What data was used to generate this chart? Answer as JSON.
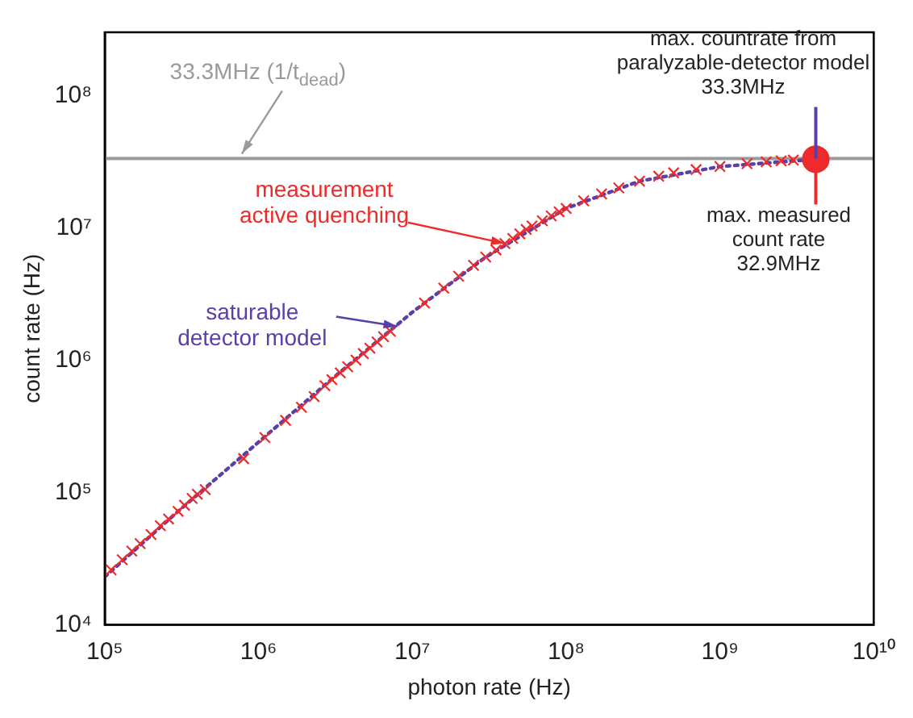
{
  "chart_data": {
    "type": "scatter",
    "xlabel": "photon rate (Hz)",
    "ylabel": "count rate (Hz)",
    "log": "xy",
    "grid": false,
    "legend": false,
    "xlim": [
      100000,
      10000000000
    ],
    "ylim": [
      10000,
      300000000
    ],
    "xticks": [
      {
        "value": 100000,
        "label": "10⁵"
      },
      {
        "value": 1000000,
        "label": "10⁶"
      },
      {
        "value": 10000000,
        "label": "10⁷"
      },
      {
        "value": 100000000,
        "label": "10⁸"
      },
      {
        "value": 1000000000,
        "label": "10⁹"
      },
      {
        "value": 10000000000,
        "label": "10¹⁰"
      }
    ],
    "yticks": [
      {
        "value": 10000,
        "label": "10⁴"
      },
      {
        "value": 100000,
        "label": "10⁵"
      },
      {
        "value": 1000000,
        "label": "10⁶"
      },
      {
        "value": 10000000,
        "label": "10⁷"
      },
      {
        "value": 100000000,
        "label": "10⁸"
      }
    ],
    "series": [
      {
        "type": "line",
        "color": "#5b3fa8",
        "line_style": "dotted",
        "marker": "none",
        "x": [
          100000,
          300000,
          1000000,
          3000000,
          10000000,
          30000000,
          100000000,
          300000000,
          1000000000,
          4200000000
        ],
        "values": [
          23000,
          72000,
          240000,
          720000,
          2300000,
          6000000,
          14000000,
          22500000,
          29000000,
          32900000
        ]
      },
      {
        "type": "scatter",
        "color": "#ee2a2a",
        "marker": "cross",
        "x": [
          110000,
          130000,
          150000,
          170000,
          200000,
          230000,
          260000,
          300000,
          330000,
          370000,
          400000,
          450000,
          800000,
          1100000,
          1500000,
          1900000,
          2300000,
          2700000,
          3000000,
          3400000,
          3800000,
          4300000,
          4800000,
          5300000,
          5900000,
          6500000,
          7200000,
          12000000,
          16000000,
          20000000,
          25000000,
          30000000,
          35000000,
          40000000,
          45000000,
          50000000,
          55000000,
          60000000,
          70000000,
          80000000,
          90000000,
          100000000,
          130000000,
          170000000,
          220000000,
          300000000,
          400000000,
          500000000,
          700000000,
          1000000000,
          1500000000,
          2000000000,
          2500000000,
          3000000000
        ],
        "values": [
          26000,
          31000,
          36000,
          41000,
          48000,
          56000,
          63000,
          72000,
          80000,
          90000,
          97000,
          105000,
          180000,
          260000,
          350000,
          440000,
          530000,
          640000,
          710000,
          800000,
          890000,
          1000000,
          1120000,
          1230000,
          1370000,
          1500000,
          1650000,
          2700000,
          3500000,
          4300000,
          5200000,
          6000000,
          6800000,
          7600000,
          8300000,
          9000000,
          9700000,
          10300000,
          11300000,
          12300000,
          13200000,
          14000000,
          16000000,
          18000000,
          20000000,
          22500000,
          24500000,
          26000000,
          27500000,
          29000000,
          30500000,
          31500000,
          32000000,
          32500000
        ]
      },
      {
        "type": "scatter",
        "color": "#ee2a2a",
        "marker": "circle",
        "x": [
          4200000000
        ],
        "values": [
          32900000
        ]
      }
    ],
    "ref_lines": [
      {
        "axis": "y",
        "value": 33300000,
        "label": "33.3MHz (1/t$_{dead}$)",
        "color": "#9a9a9a"
      }
    ],
    "annotations": [
      {
        "text": "measurement\nactive quenching",
        "x": 40000000,
        "y": 7600000
      },
      {
        "text": "saturable\ndetector model",
        "x": 8000000,
        "y": 1800000
      },
      {
        "text": "max. countrate from\nparalyzable-detector model\n33.3MHz",
        "x": 4200000000,
        "y": 33300000
      },
      {
        "text": "max. measured\ncount rate\n32.9MHz",
        "x": 4200000000,
        "y": 32900000
      }
    ]
  }
}
